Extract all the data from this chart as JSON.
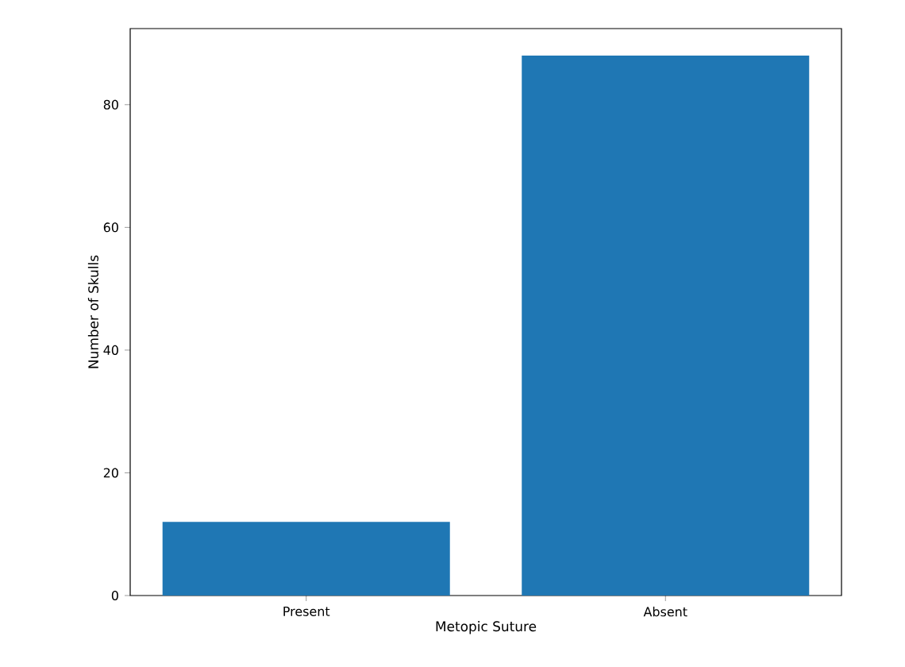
{
  "chart_data": {
    "type": "bar",
    "xlabel": "Metopic Suture",
    "ylabel": "Number of Skulls",
    "categories": [
      "Present",
      "Absent"
    ],
    "values": [
      12,
      88
    ],
    "color": "#1f77b4",
    "ylim": [
      0,
      92.4
    ],
    "yticks": [
      0,
      20,
      40,
      60,
      80
    ],
    "grid": false
  }
}
